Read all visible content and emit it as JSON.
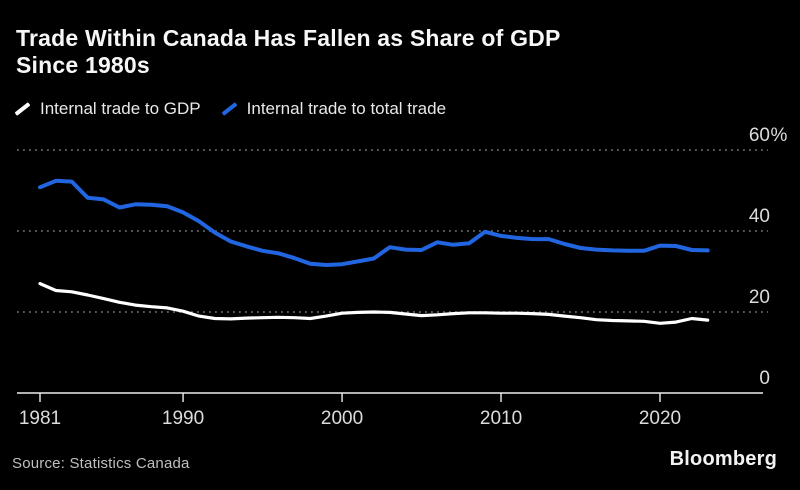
{
  "header": {
    "title": "Trade Within Canada Has Fallen as Share of GDP\nSince 1980s"
  },
  "legend": {
    "items": [
      {
        "label": "Internal trade to GDP",
        "color": "#ffffff"
      },
      {
        "label": "Internal trade to total trade",
        "color": "#2166e0"
      }
    ]
  },
  "footer": {
    "source": "Source: Statistics Canada",
    "brand": "Bloomberg"
  },
  "chart_data": {
    "type": "line",
    "title": "Trade Within Canada Has Fallen as Share of GDP Since 1980s",
    "xlabel": "",
    "ylabel": "%",
    "ylim": [
      0,
      60
    ],
    "grid": "horizontal-dotted",
    "legend_position": "top-left",
    "x": [
      1981,
      1982,
      1983,
      1984,
      1985,
      1986,
      1987,
      1988,
      1989,
      1990,
      1991,
      1992,
      1993,
      1994,
      1995,
      1996,
      1997,
      1998,
      1999,
      2000,
      2001,
      2002,
      2003,
      2004,
      2005,
      2006,
      2007,
      2008,
      2009,
      2010,
      2011,
      2012,
      2013,
      2014,
      2015,
      2016,
      2017,
      2018,
      2019,
      2020,
      2021,
      2022,
      2023
    ],
    "x_ticks": {
      "years": [
        1981,
        1990,
        2000,
        2010,
        2020
      ],
      "labels": [
        "1981",
        "1990",
        "2000",
        "2010",
        "2020"
      ]
    },
    "y_ticks": [
      {
        "value": 0,
        "label": "0"
      },
      {
        "value": 20,
        "label": "20"
      },
      {
        "value": 40,
        "label": "40"
      },
      {
        "value": 60,
        "label": "60%"
      }
    ],
    "series": [
      {
        "name": "Internal trade to GDP",
        "color": "#ffffff",
        "values": [
          27.0,
          25.3,
          25.0,
          24.2,
          23.3,
          22.4,
          21.7,
          21.3,
          21.0,
          20.2,
          19.0,
          18.4,
          18.3,
          18.5,
          18.6,
          18.7,
          18.6,
          18.4,
          19.0,
          19.7,
          19.9,
          20.0,
          19.9,
          19.5,
          19.1,
          19.3,
          19.6,
          19.8,
          19.8,
          19.7,
          19.7,
          19.6,
          19.4,
          19.0,
          18.6,
          18.1,
          17.9,
          17.8,
          17.7,
          17.2,
          17.5,
          18.4,
          18.0
        ]
      },
      {
        "name": "Internal trade to total trade",
        "color": "#2166e0",
        "values": [
          50.8,
          52.4,
          52.2,
          48.2,
          47.8,
          45.8,
          46.6,
          46.5,
          46.1,
          44.6,
          42.4,
          39.6,
          37.4,
          36.2,
          35.1,
          34.5,
          33.3,
          31.9,
          31.6,
          31.8,
          32.5,
          33.2,
          36.0,
          35.4,
          35.3,
          37.2,
          36.6,
          37.0,
          39.8,
          38.8,
          38.3,
          38.0,
          38.0,
          36.8,
          35.8,
          35.4,
          35.2,
          35.1,
          35.1,
          36.4,
          36.3,
          35.3,
          35.2
        ]
      }
    ]
  }
}
